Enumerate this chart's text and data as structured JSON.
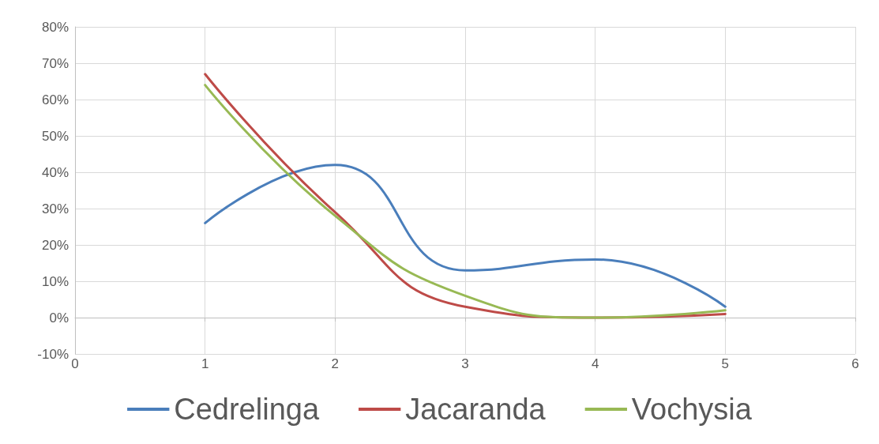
{
  "chart_data": {
    "type": "line",
    "x": [
      1,
      2,
      3,
      4,
      5
    ],
    "series": [
      {
        "name": "Cedrelinga",
        "color": "#4a7ebb",
        "values": [
          26,
          42,
          13,
          16,
          3
        ]
      },
      {
        "name": "Jacaranda",
        "color": "#be4b48",
        "values": [
          67,
          29,
          3,
          0,
          1
        ]
      },
      {
        "name": "Vochysia",
        "color": "#98b954",
        "values": [
          64,
          28,
          6,
          0,
          2
        ]
      }
    ],
    "xlim": [
      0,
      6
    ],
    "xticks": [
      0,
      1,
      2,
      3,
      4,
      5,
      6
    ],
    "ylim": [
      -10,
      80
    ],
    "yticks": [
      {
        "value": -10,
        "label": "-10%"
      },
      {
        "value": 0,
        "label": "0%"
      },
      {
        "value": 10,
        "label": "10%"
      },
      {
        "value": 20,
        "label": "20%"
      },
      {
        "value": 30,
        "label": "30%"
      },
      {
        "value": 40,
        "label": "40%"
      },
      {
        "value": 50,
        "label": "50%"
      },
      {
        "value": 60,
        "label": "60%"
      },
      {
        "value": 70,
        "label": "70%"
      },
      {
        "value": 80,
        "label": "80%"
      }
    ],
    "grid": true,
    "legend": "bottom",
    "marker": "none",
    "line_style": "solid"
  }
}
